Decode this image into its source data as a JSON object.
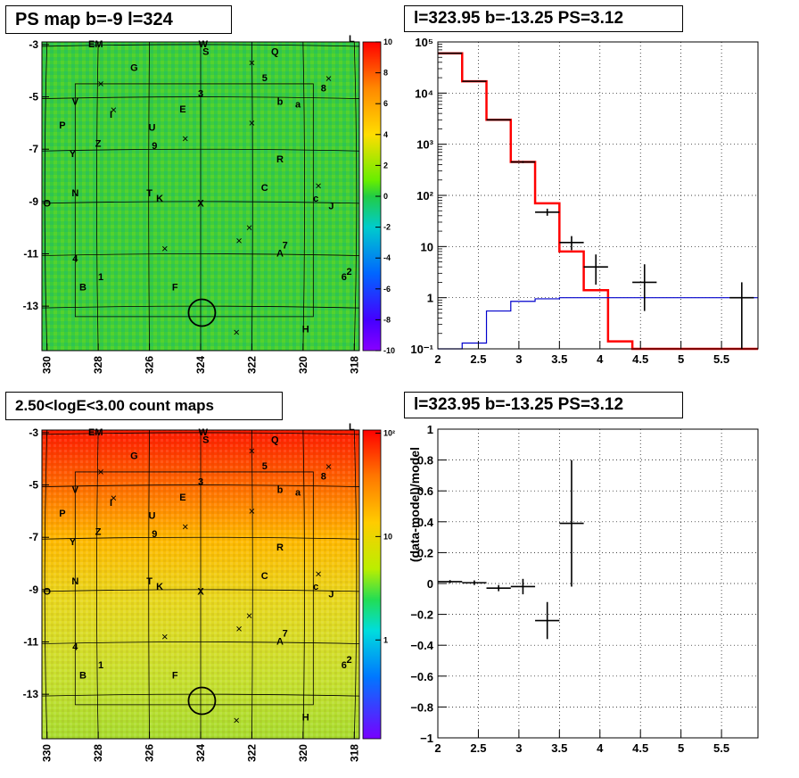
{
  "titles": {
    "top_left": "PS map b=-9 l=324",
    "top_right": "l=323.95 b=-13.25 PS=3.12",
    "bottom_left": "2.50<logE<3.00 count maps",
    "bottom_right": "l=323.95 b=-13.25 PS=3.12"
  },
  "colors": {
    "model": "#ff0000",
    "background_model": "#0000cc",
    "data": "#000000",
    "ps_map_field": "#33cc33",
    "count_map_top": "#ff2200",
    "count_map_bottom": "#ccdd33"
  },
  "ps_map": {
    "x_ticks": [
      "330",
      "328",
      "326",
      "324",
      "322",
      "320",
      "318"
    ],
    "y_ticks": [
      "-3",
      "-5",
      "-7",
      "-9",
      "-11",
      "-13"
    ],
    "colorbar_ticks": [
      "10",
      "8",
      "6",
      "4",
      "2",
      "0",
      "-2",
      "-4",
      "-6",
      "-8",
      "-10"
    ],
    "source_labels": [
      {
        "t": "EM",
        "l": 328.1,
        "b": -3.1
      },
      {
        "t": "W",
        "l": 323.9,
        "b": -3.1
      },
      {
        "t": "S",
        "l": 323.8,
        "b": -3.4
      },
      {
        "t": "Q",
        "l": 321.1,
        "b": -3.4
      },
      {
        "t": "G",
        "l": 326.6,
        "b": -4.0
      },
      {
        "t": "5",
        "l": 321.5,
        "b": -4.4
      },
      {
        "t": "8",
        "l": 319.2,
        "b": -4.8
      },
      {
        "t": "3",
        "l": 324.0,
        "b": -5.0
      },
      {
        "t": "b",
        "l": 320.9,
        "b": -5.3
      },
      {
        "t": "a",
        "l": 320.2,
        "b": -5.4
      },
      {
        "t": "V",
        "l": 328.9,
        "b": -5.3
      },
      {
        "t": "I",
        "l": 327.5,
        "b": -5.8
      },
      {
        "t": "E",
        "l": 324.7,
        "b": -5.6
      },
      {
        "t": "P",
        "l": 329.4,
        "b": -6.2
      },
      {
        "t": "U",
        "l": 325.9,
        "b": -6.3
      },
      {
        "t": "Z",
        "l": 328.0,
        "b": -6.9
      },
      {
        "t": "9",
        "l": 325.8,
        "b": -7.0
      },
      {
        "t": "Y",
        "l": 329.0,
        "b": -7.3
      },
      {
        "t": "R",
        "l": 320.9,
        "b": -7.5
      },
      {
        "t": "C",
        "l": 321.5,
        "b": -8.6
      },
      {
        "t": "N",
        "l": 328.9,
        "b": -8.8
      },
      {
        "t": "T",
        "l": 326.0,
        "b": -8.8
      },
      {
        "t": "K",
        "l": 325.6,
        "b": -9.0
      },
      {
        "t": "X",
        "l": 324.0,
        "b": -9.2
      },
      {
        "t": "c",
        "l": 319.5,
        "b": -9.0
      },
      {
        "t": "J",
        "l": 318.9,
        "b": -9.3
      },
      {
        "t": "O",
        "l": 330.0,
        "b": -9.2
      },
      {
        "t": "7",
        "l": 320.7,
        "b": -10.8
      },
      {
        "t": "A",
        "l": 320.9,
        "b": -11.1
      },
      {
        "t": "4",
        "l": 328.9,
        "b": -11.3
      },
      {
        "t": "1",
        "l": 327.9,
        "b": -12.0
      },
      {
        "t": "B",
        "l": 328.6,
        "b": -12.4
      },
      {
        "t": "F",
        "l": 325.0,
        "b": -12.4
      },
      {
        "t": "2",
        "l": 318.2,
        "b": -11.8
      },
      {
        "t": "6",
        "l": 318.4,
        "b": -12.0
      },
      {
        "t": "H",
        "l": 319.9,
        "b": -14.0
      },
      {
        "t": "L",
        "l": 318.1,
        "b": -2.9
      }
    ]
  },
  "count_map": {
    "x_ticks": [
      "330",
      "328",
      "326",
      "324",
      "322",
      "320",
      "318"
    ],
    "y_ticks": [
      "-3",
      "-5",
      "-7",
      "-9",
      "-11",
      "-13"
    ],
    "colorbar_ticks": [
      "10²",
      "10",
      "1"
    ]
  },
  "chart_data": [
    {
      "type": "heatmap",
      "title": "PS map b=-9 l=324",
      "xlabel": "",
      "ylabel": "",
      "xlim": [
        330.2,
        317.8
      ],
      "ylim": [
        -14.7,
        -2.9
      ],
      "zlim": [
        -10,
        10
      ],
      "x_tick_values": [
        330,
        328,
        326,
        324,
        322,
        320,
        318
      ],
      "y_tick_values": [
        -3,
        -5,
        -7,
        -9,
        -11,
        -13
      ],
      "z_tick_values": [
        10,
        8,
        6,
        4,
        2,
        0,
        -2,
        -4,
        -6,
        -8,
        -10
      ],
      "grid": true,
      "circle": {
        "l": 323.95,
        "b": -13.25
      },
      "crosses": [
        [
          327.9,
          -4.5
        ],
        [
          327.4,
          -5.5
        ],
        [
          324.6,
          -6.6
        ],
        [
          322.0,
          -3.7
        ],
        [
          322.0,
          -6.0
        ],
        [
          319.0,
          -4.3
        ],
        [
          319.4,
          -8.4
        ],
        [
          322.1,
          -10.0
        ],
        [
          322.5,
          -10.5
        ],
        [
          325.4,
          -10.8
        ],
        [
          322.6,
          -14.0
        ]
      ]
    },
    {
      "type": "line",
      "title": "l=323.95 b=-13.25 PS=3.12",
      "xlabel": "",
      "ylabel": "",
      "xlim": [
        2.0,
        5.95
      ],
      "ylim": [
        0.1,
        100000
      ],
      "yscale": "log",
      "x_tick_values": [
        2,
        2.5,
        3,
        3.5,
        4,
        4.5,
        5,
        5.5
      ],
      "x_tick_labels": [
        "2",
        "2.5",
        "3",
        "3.5",
        "4",
        "4.5",
        "5",
        "5.5"
      ],
      "y_tick_values": [
        0.1,
        1,
        10,
        100,
        1000,
        10000,
        100000
      ],
      "y_tick_labels": [
        "10⁻¹",
        "1",
        "10",
        "10²",
        "10³",
        "10⁴",
        "10⁵"
      ],
      "grid": true,
      "series": [
        {
          "kind": "step",
          "color": "#ff0000",
          "edges": [
            2.0,
            2.3,
            2.6,
            2.9,
            3.2,
            3.5,
            3.8,
            4.1,
            4.4,
            4.7,
            5.95
          ],
          "values": [
            60000,
            17000,
            3000,
            450,
            70,
            8,
            1.4,
            0.14,
            0.1,
            0.1
          ]
        },
        {
          "kind": "step",
          "color": "#0000cc",
          "edges": [
            2.0,
            2.3,
            2.6,
            2.9,
            3.2,
            3.5,
            3.8,
            4.1,
            4.4,
            4.7,
            5.0,
            5.95
          ],
          "values": [
            0.08,
            0.13,
            0.55,
            0.85,
            0.95,
            1.0,
            1.0,
            1.0,
            1.0,
            1.0,
            1.0
          ]
        },
        {
          "kind": "errorbar",
          "color": "#000000",
          "points": [
            {
              "x": 2.15,
              "y": 60000,
              "xerr": 0.15,
              "ylo": 59500,
              "yhi": 60500
            },
            {
              "x": 2.45,
              "y": 17000,
              "xerr": 0.15,
              "ylo": 16800,
              "yhi": 17200
            },
            {
              "x": 2.75,
              "y": 3000,
              "xerr": 0.15,
              "ylo": 2950,
              "yhi": 3050
            },
            {
              "x": 3.05,
              "y": 450,
              "xerr": 0.15,
              "ylo": 430,
              "yhi": 470
            },
            {
              "x": 3.35,
              "y": 47,
              "xerr": 0.15,
              "ylo": 40,
              "yhi": 55
            },
            {
              "x": 3.65,
              "y": 12,
              "xerr": 0.15,
              "ylo": 8.5,
              "yhi": 16
            },
            {
              "x": 3.95,
              "y": 4,
              "xerr": 0.15,
              "ylo": 1.8,
              "yhi": 7
            },
            {
              "x": 4.55,
              "y": 2,
              "xerr": 0.15,
              "ylo": 0.55,
              "yhi": 4.5
            },
            {
              "x": 5.75,
              "y": 1,
              "xerr": 0.15,
              "ylo": 0.1,
              "yhi": 2
            }
          ]
        }
      ]
    },
    {
      "type": "heatmap",
      "title": "2.50<logE<3.00 count maps",
      "xlabel": "",
      "ylabel": "",
      "xlim": [
        330.2,
        317.8
      ],
      "ylim": [
        -14.7,
        -2.9
      ],
      "zscale": "log",
      "zlim": [
        0.3,
        100
      ],
      "x_tick_values": [
        330,
        328,
        326,
        324,
        322,
        320,
        318
      ],
      "y_tick_values": [
        -3,
        -5,
        -7,
        -9,
        -11,
        -13
      ],
      "grid": true,
      "circle": {
        "l": 323.95,
        "b": -13.25
      }
    },
    {
      "type": "scatter",
      "title": "l=323.95 b=-13.25 PS=3.12",
      "xlabel": "",
      "ylabel": "(data-model)/model",
      "xlim": [
        2.0,
        5.95
      ],
      "ylim": [
        -1,
        1
      ],
      "x_tick_values": [
        2,
        2.5,
        3,
        3.5,
        4,
        4.5,
        5,
        5.5
      ],
      "x_tick_labels": [
        "2",
        "2.5",
        "3",
        "3.5",
        "4",
        "4.5",
        "5",
        "5.5"
      ],
      "y_tick_values": [
        -1,
        -0.8,
        -0.6,
        -0.4,
        -0.2,
        0,
        0.2,
        0.4,
        0.6,
        0.8,
        1
      ],
      "y_tick_labels": [
        "−1",
        "−0.8",
        "−0.6",
        "−0.4",
        "−0.2",
        "0",
        "0.2",
        "0.4",
        "0.6",
        "0.8",
        "1"
      ],
      "grid": true,
      "points": [
        {
          "x": 2.15,
          "y": 0.012,
          "xerr": 0.15,
          "yerr": 0.01
        },
        {
          "x": 2.45,
          "y": 0.005,
          "xerr": 0.15,
          "yerr": 0.015
        },
        {
          "x": 2.75,
          "y": -0.03,
          "xerr": 0.15,
          "yerr": 0.02
        },
        {
          "x": 3.05,
          "y": -0.02,
          "xerr": 0.15,
          "yerr": 0.05
        },
        {
          "x": 3.35,
          "y": -0.24,
          "xerr": 0.15,
          "yerr": 0.12
        },
        {
          "x": 3.65,
          "y": 0.39,
          "xerr": 0.15,
          "yerr": 0.41
        }
      ]
    }
  ]
}
